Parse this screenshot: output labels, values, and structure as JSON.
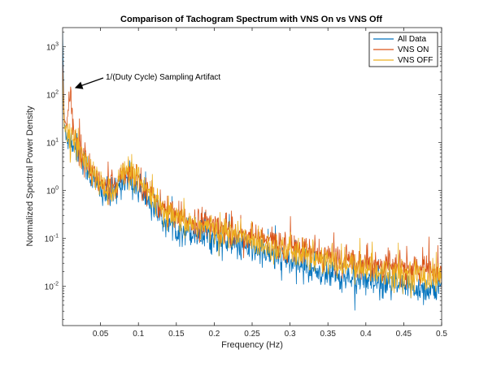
{
  "chart_data": {
    "type": "line",
    "title": "Comparison of Tachogram Spectrum with VNS On vs VNS Off",
    "xlabel": "Frequency (Hz)",
    "ylabel": "Normalized Spectral Power Density",
    "xlim": [
      0,
      0.5
    ],
    "ylim": [
      0.0015,
      2500
    ],
    "yscale": "log",
    "grid": false,
    "legend_position": "top-right",
    "x_ticks": [
      0.05,
      0.1,
      0.15,
      0.2,
      0.25,
      0.3,
      0.35,
      0.4,
      0.45,
      0.5
    ],
    "x_tick_labels": [
      "0.05",
      "0.1",
      "0.15",
      "0.2",
      "0.25",
      "0.3",
      "0.35",
      "0.4",
      "0.45",
      "0.5"
    ],
    "y_ticks": [
      0.01,
      0.1,
      1,
      10,
      100,
      1000
    ],
    "y_tick_labels": [
      {
        "base": "10",
        "exp": "-2"
      },
      {
        "base": "10",
        "exp": "-1"
      },
      {
        "base": "10",
        "exp": "0"
      },
      {
        "base": "10",
        "exp": "1"
      },
      {
        "base": "10",
        "exp": "2"
      },
      {
        "base": "10",
        "exp": "3"
      }
    ],
    "series": [
      {
        "name": "All Data",
        "color": "#0072BD",
        "x": [
          0.0,
          0.002,
          0.005,
          0.01,
          0.015,
          0.02,
          0.03,
          0.04,
          0.05,
          0.06,
          0.07,
          0.08,
          0.09,
          0.1,
          0.11,
          0.12,
          0.13,
          0.14,
          0.15,
          0.175,
          0.2,
          0.225,
          0.25,
          0.275,
          0.3,
          0.325,
          0.35,
          0.375,
          0.4,
          0.425,
          0.45,
          0.475,
          0.5
        ],
        "y": [
          2000,
          25,
          15,
          11,
          9,
          7,
          3.5,
          1.6,
          1.0,
          0.7,
          0.9,
          1.9,
          1.6,
          1.1,
          0.75,
          0.45,
          0.28,
          0.2,
          0.17,
          0.13,
          0.1,
          0.075,
          0.06,
          0.045,
          0.032,
          0.024,
          0.018,
          0.015,
          0.012,
          0.0105,
          0.0095,
          0.0088,
          0.0085
        ]
      },
      {
        "name": "VNS ON",
        "color": "#D95319",
        "x": [
          0.0,
          0.002,
          0.005,
          0.01,
          0.015,
          0.02,
          0.03,
          0.04,
          0.05,
          0.06,
          0.07,
          0.08,
          0.09,
          0.1,
          0.11,
          0.12,
          0.13,
          0.14,
          0.15,
          0.175,
          0.2,
          0.225,
          0.25,
          0.275,
          0.3,
          0.325,
          0.35,
          0.375,
          0.4,
          0.425,
          0.45,
          0.475,
          0.5
        ],
        "y": [
          600,
          30,
          18,
          120,
          14,
          9,
          4.5,
          2.2,
          1.4,
          1.0,
          1.3,
          2.6,
          2.4,
          1.7,
          1.1,
          0.7,
          0.45,
          0.32,
          0.27,
          0.22,
          0.18,
          0.14,
          0.11,
          0.085,
          0.065,
          0.052,
          0.042,
          0.036,
          0.031,
          0.027,
          0.024,
          0.022,
          0.02
        ]
      },
      {
        "name": "VNS OFF",
        "color": "#EDB120",
        "x": [
          0.0,
          0.002,
          0.005,
          0.01,
          0.015,
          0.02,
          0.03,
          0.04,
          0.05,
          0.06,
          0.07,
          0.08,
          0.09,
          0.1,
          0.11,
          0.12,
          0.13,
          0.14,
          0.15,
          0.175,
          0.2,
          0.225,
          0.25,
          0.275,
          0.3,
          0.325,
          0.35,
          0.375,
          0.4,
          0.425,
          0.45,
          0.475,
          0.5
        ],
        "y": [
          300,
          22,
          16,
          12,
          11,
          8,
          4.0,
          2.0,
          1.3,
          0.95,
          1.2,
          2.4,
          2.2,
          1.5,
          1.0,
          0.65,
          0.4,
          0.29,
          0.24,
          0.19,
          0.15,
          0.12,
          0.09,
          0.07,
          0.052,
          0.04,
          0.032,
          0.027,
          0.023,
          0.02,
          0.018,
          0.016,
          0.015
        ]
      }
    ],
    "annotations": [
      {
        "text": "1/(Duty Cycle) Sampling Artifact",
        "x": 0.01,
        "y": 120
      }
    ]
  }
}
